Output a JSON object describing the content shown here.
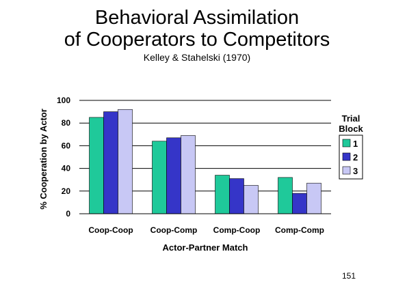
{
  "slide": {
    "title_line1": "Behavioral Assimilation",
    "title_line2": "of Cooperators to Competitors",
    "subtitle": "Kelley & Stahelski (1970)",
    "slide_number": "151"
  },
  "chart_data": {
    "type": "bar",
    "title": "",
    "xlabel": "Actor-Partner Match",
    "ylabel": "% Cooperation by Actor",
    "ylim": [
      0,
      100
    ],
    "yticks": [
      0,
      20,
      40,
      60,
      80,
      100
    ],
    "categories": [
      "Coop-Coop",
      "Coop-Comp",
      "Comp-Coop",
      "Comp-Comp"
    ],
    "legend_title_line1": "Trial",
    "legend_title_line2": "Block",
    "legend_placement": "right",
    "grid": true,
    "series": [
      {
        "name": "1",
        "color": "#1fc99a",
        "values": [
          85,
          64,
          34,
          32
        ]
      },
      {
        "name": "2",
        "color": "#3535c8",
        "values": [
          90,
          67,
          31,
          18
        ]
      },
      {
        "name": "3",
        "color": "#c8c8f5",
        "values": [
          92,
          69,
          25,
          27
        ]
      }
    ]
  }
}
